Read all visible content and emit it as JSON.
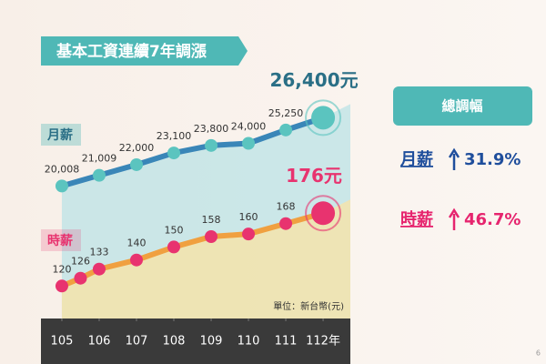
{
  "chart_data": {
    "type": "line",
    "title": "基本工資連續7年調漲",
    "series": [
      {
        "name": "月薪",
        "color": "#5bc4bf",
        "line_color": "#3a86b8",
        "area_color": "#bfe3e6",
        "axis": "y",
        "x": [
          105,
          106,
          107,
          108,
          109,
          110,
          111,
          112
        ],
        "values": [
          20008,
          21009,
          22000,
          23100,
          23800,
          24000,
          25250,
          26400
        ],
        "value_labels": [
          "20,008",
          "21,009",
          "22,000",
          "23,100",
          "23,800",
          "24,000",
          "25,250",
          "26,400元"
        ]
      },
      {
        "name": "時薪",
        "color": "#e8336f",
        "line_color": "#f0a040",
        "area_color": "#f6e3a8",
        "axis": "y2",
        "x": [
          105,
          105.5,
          106,
          107,
          108,
          109,
          110,
          111,
          112
        ],
        "values": [
          120,
          126,
          133,
          140,
          150,
          158,
          160,
          168,
          176
        ],
        "value_labels": [
          "120",
          "126",
          "133",
          "140",
          "150",
          "158",
          "160",
          "168",
          "176元"
        ]
      }
    ],
    "xlim": [
      104.44,
      112.73
    ],
    "xticks": [
      105,
      106,
      107,
      108,
      109,
      110,
      111,
      {
        "value": 112,
        "label": "112年"
      }
    ],
    "ylim": [
      7600,
      28900
    ],
    "y2lim": [
      95,
      270
    ],
    "unit_note": "單位：新台幣(元)"
  },
  "summary": {
    "title": "總調幅",
    "items": [
      {
        "label": "月薪",
        "value": "31.9%",
        "color": "#1f4e9c"
      },
      {
        "label": "時薪",
        "value": "46.7%",
        "color": "#e6246e"
      }
    ]
  },
  "page_number": "6"
}
